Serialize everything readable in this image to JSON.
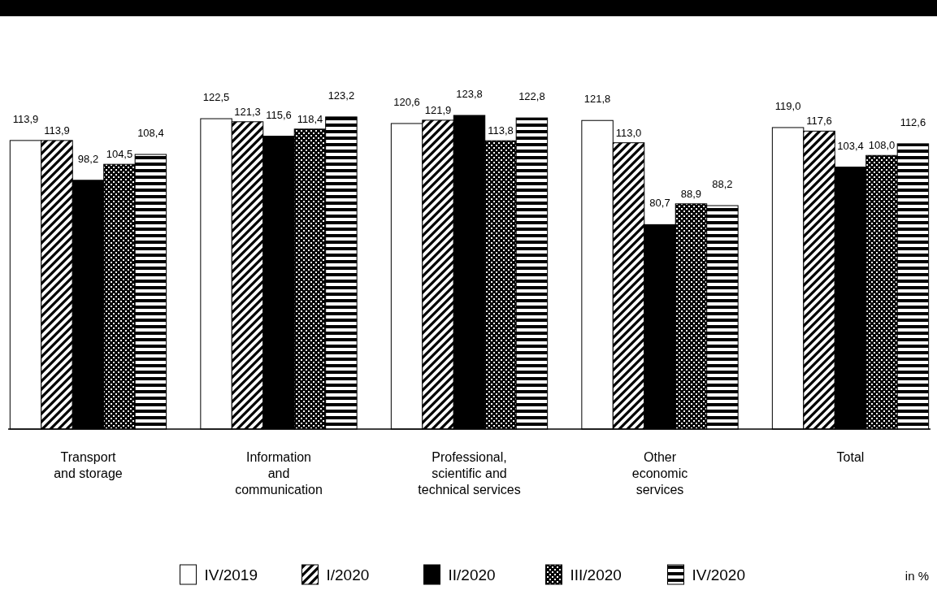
{
  "chart_data": {
    "type": "bar",
    "categories": [
      "Transport\nand storage",
      "Information\nand\ncommunication",
      "Professional,\nscientific and\ntechnical services",
      "Other\neconomic\nservices",
      "Total"
    ],
    "series": [
      {
        "name": "IV/2019",
        "color": "#ffffff",
        "values": [
          113.9,
          122.5,
          120.6,
          121.8,
          119.0
        ],
        "value_labels": [
          "113,9",
          "122,5",
          "120,6",
          "121,8",
          "119,0"
        ]
      },
      {
        "name": "I/2020",
        "color": "#000000",
        "values": [
          113.9,
          121.3,
          121.9,
          113.0,
          117.6
        ],
        "value_labels": [
          "113,9",
          "121,3",
          "121,9",
          "113,0",
          "117,6"
        ]
      },
      {
        "name": "II/2020",
        "color": "#000000",
        "values": [
          98.2,
          115.6,
          123.8,
          80.7,
          103.4
        ],
        "value_labels": [
          "98,2",
          "115,6",
          "123,8",
          "80,7",
          "103,4"
        ]
      },
      {
        "name": "III/2020",
        "color": "#000000",
        "values": [
          104.5,
          118.4,
          113.8,
          88.9,
          108.0
        ],
        "value_labels": [
          "104,5",
          "118,4",
          "113,8",
          "88,9",
          "108,0"
        ]
      },
      {
        "name": "IV/2020",
        "color": "#000000",
        "values": [
          108.4,
          123.2,
          122.8,
          88.2,
          112.6
        ],
        "value_labels": [
          "108,4",
          "123,2",
          "122,8",
          "88,2",
          "112,6"
        ]
      }
    ],
    "tick_labels": "x",
    "legend": "bottom",
    "annotations": [
      "in %"
    ]
  }
}
